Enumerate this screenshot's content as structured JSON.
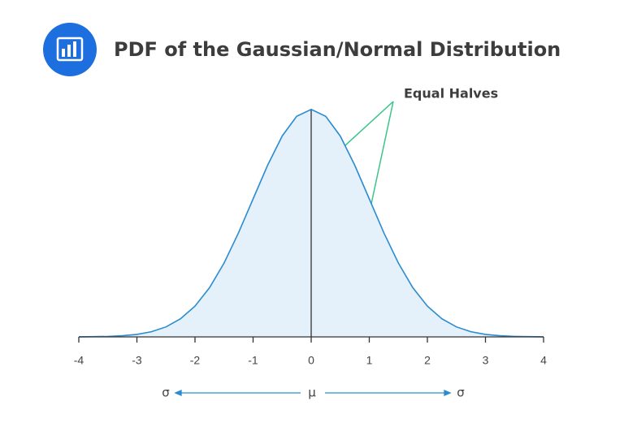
{
  "chart_data": {
    "type": "area",
    "title": "PDF of the Gaussian/Normal Distribution",
    "annotation": "Equal Halves",
    "bottom_labels": [
      "σ",
      "μ",
      "σ"
    ],
    "x": [
      -4,
      -3.75,
      -3.5,
      -3.25,
      -3,
      -2.75,
      -2.5,
      -2.25,
      -2,
      -1.75,
      -1.5,
      -1.25,
      -1,
      -0.75,
      -0.5,
      -0.25,
      0,
      0.25,
      0.5,
      0.75,
      1,
      1.25,
      1.5,
      1.75,
      2,
      2.25,
      2.5,
      2.75,
      3,
      3.25,
      3.5,
      3.75,
      4
    ],
    "values": [
      0.0001,
      0.0004,
      0.0009,
      0.002,
      0.0044,
      0.0091,
      0.0175,
      0.0317,
      0.054,
      0.0863,
      0.1295,
      0.1826,
      0.242,
      0.3011,
      0.3521,
      0.3867,
      0.3989,
      0.3867,
      0.3521,
      0.3011,
      0.242,
      0.1826,
      0.1295,
      0.0863,
      0.054,
      0.0317,
      0.0175,
      0.0091,
      0.0044,
      0.002,
      0.0009,
      0.0004,
      0.0001
    ],
    "color": "#2b8ccf",
    "fill": "#e4f0fa",
    "xlim": [
      -4,
      4
    ],
    "ylim": [
      0,
      0.4
    ],
    "xticks": [
      -4,
      -3,
      -2,
      -1,
      0,
      1,
      2,
      3,
      4
    ]
  }
}
